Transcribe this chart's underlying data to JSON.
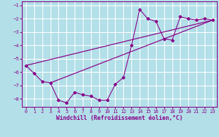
{
  "bg_color": "#b2dfe8",
  "grid_color": "#c5eaf0",
  "line_color": "#880088",
  "xlabel": "Windchill (Refroidissement éolien,°C)",
  "ylim": [
    -8.6,
    -0.7
  ],
  "xlim": [
    -0.5,
    23.5
  ],
  "yticks": [
    -8,
    -7,
    -6,
    -5,
    -4,
    -3,
    -2,
    -1
  ],
  "xticks": [
    0,
    1,
    2,
    3,
    4,
    5,
    6,
    7,
    8,
    9,
    10,
    11,
    12,
    13,
    14,
    15,
    16,
    17,
    18,
    19,
    20,
    21,
    22,
    23
  ],
  "zigzag_x": [
    0,
    1,
    2,
    3,
    4,
    5,
    6,
    7,
    8,
    9,
    10,
    11,
    12,
    13,
    14,
    15,
    16,
    17,
    18,
    19,
    20,
    21,
    22,
    23
  ],
  "zigzag_y": [
    -5.5,
    -6.1,
    -6.7,
    -6.8,
    -8.1,
    -8.3,
    -7.5,
    -7.7,
    -7.8,
    -8.1,
    -8.1,
    -6.9,
    -6.4,
    -4.0,
    -1.3,
    -2.0,
    -2.2,
    -3.5,
    -3.6,
    -1.85,
    -2.0,
    -2.1,
    -2.0,
    -2.1
  ],
  "line1_x": [
    0,
    23
  ],
  "line1_y": [
    -5.5,
    -2.1
  ],
  "line2_x": [
    3,
    23
  ],
  "line2_y": [
    -6.8,
    -2.1
  ]
}
